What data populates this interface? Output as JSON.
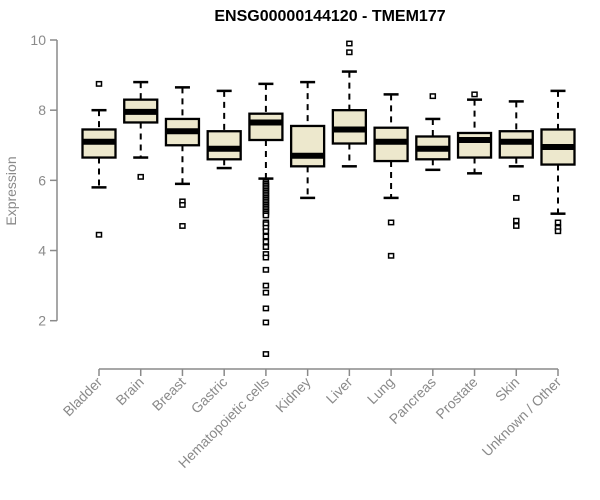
{
  "chart_data": {
    "type": "boxplot",
    "title": "ENSG00000144120 - TMEM177",
    "xlabel": "",
    "ylabel": "Expression",
    "ylim": [
      1,
      10
    ],
    "yticks": [
      2,
      4,
      6,
      8,
      10
    ],
    "grid": false,
    "legend": "none",
    "categories": [
      "Bladder",
      "Brain",
      "Breast",
      "Gastric",
      "Hematopoietic cells",
      "Kidney",
      "Liver",
      "Lung",
      "Pancreas",
      "Prostate",
      "Skin",
      "Unknown / Other"
    ],
    "series": [
      {
        "name": "Bladder",
        "whisker_low": 5.8,
        "q1": 6.65,
        "median": 7.1,
        "q3": 7.45,
        "whisker_high": 8.0,
        "outliers": [
          8.75,
          4.45
        ]
      },
      {
        "name": "Brain",
        "whisker_low": 6.65,
        "q1": 7.65,
        "median": 7.95,
        "q3": 8.3,
        "whisker_high": 8.8,
        "outliers": [
          6.1
        ]
      },
      {
        "name": "Breast",
        "whisker_low": 5.9,
        "q1": 7.0,
        "median": 7.4,
        "q3": 7.75,
        "whisker_high": 8.65,
        "outliers": [
          5.4,
          5.3,
          4.7
        ]
      },
      {
        "name": "Gastric",
        "whisker_low": 6.35,
        "q1": 6.6,
        "median": 6.9,
        "q3": 7.4,
        "whisker_high": 8.55,
        "outliers": []
      },
      {
        "name": "Hematopoietic cells",
        "whisker_low": 6.05,
        "q1": 7.15,
        "median": 7.65,
        "q3": 7.9,
        "whisker_high": 8.75,
        "outliers": [
          5.95,
          5.9,
          5.85,
          5.8,
          5.75,
          5.7,
          5.65,
          5.6,
          5.55,
          5.5,
          5.45,
          5.4,
          5.35,
          5.3,
          5.25,
          5.2,
          5.15,
          5.1,
          5.05,
          5.0,
          4.8,
          4.75,
          4.65,
          4.55,
          4.4,
          4.25,
          4.1,
          3.9,
          3.8,
          3.45,
          3.0,
          2.8,
          2.35,
          1.95,
          1.05
        ]
      },
      {
        "name": "Kidney",
        "whisker_low": 5.5,
        "q1": 6.4,
        "median": 6.7,
        "q3": 7.55,
        "whisker_high": 8.8,
        "outliers": []
      },
      {
        "name": "Liver",
        "whisker_low": 6.4,
        "q1": 7.05,
        "median": 7.45,
        "q3": 8.0,
        "whisker_high": 9.1,
        "outliers": [
          9.9,
          9.65
        ]
      },
      {
        "name": "Lung",
        "whisker_low": 5.5,
        "q1": 6.55,
        "median": 7.1,
        "q3": 7.5,
        "whisker_high": 8.45,
        "outliers": [
          4.8,
          3.85
        ]
      },
      {
        "name": "Pancreas",
        "whisker_low": 6.3,
        "q1": 6.6,
        "median": 6.9,
        "q3": 7.25,
        "whisker_high": 7.75,
        "outliers": [
          8.4
        ]
      },
      {
        "name": "Prostate",
        "whisker_low": 6.2,
        "q1": 6.65,
        "median": 7.15,
        "q3": 7.35,
        "whisker_high": 8.3,
        "outliers": [
          8.45
        ]
      },
      {
        "name": "Skin",
        "whisker_low": 6.4,
        "q1": 6.65,
        "median": 7.1,
        "q3": 7.4,
        "whisker_high": 8.25,
        "outliers": [
          5.5,
          4.85,
          4.7
        ]
      },
      {
        "name": "Unknown / Other",
        "whisker_low": 5.05,
        "q1": 6.45,
        "median": 6.95,
        "q3": 7.45,
        "whisker_high": 8.55,
        "outliers": [
          4.8,
          4.65,
          4.55
        ]
      }
    ]
  },
  "colors": {
    "box_fill": "#EDE8CD",
    "box_border": "#000000",
    "median": "#000000",
    "whisker": "#000000",
    "outlier_stroke": "#000000",
    "outlier_fill": "#ffffff",
    "axis_line": "#8a8a8a",
    "tick_label": "#8a8a8a",
    "title_text": "#000000"
  },
  "markers": {
    "outlier_shape": "open-square"
  }
}
